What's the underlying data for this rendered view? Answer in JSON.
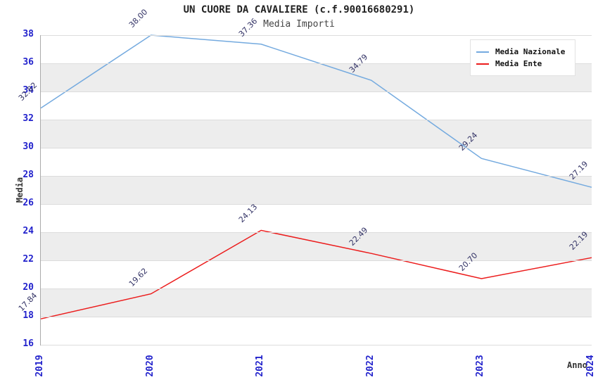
{
  "header": {
    "title": "UN CUORE DA CAVALIERE (c.f.90016680291)",
    "subtitle": "Media Importi"
  },
  "colors": {
    "national": "#74aadf",
    "ente": "#ec1c1c",
    "tick_blue": "#2222cc",
    "data_label": "#333366",
    "band_gray": "#ededed",
    "gridline": "#dcdcdc"
  },
  "legend": {
    "items": [
      {
        "label": "Media Nazionale"
      },
      {
        "label": "Media Ente"
      }
    ]
  },
  "chart_data": {
    "type": "line",
    "title": "UN CUORE DA CAVALIERE (c.f.90016680291)",
    "subtitle": "Media Importi",
    "xlabel": "Anno",
    "ylabel": "Media",
    "x": [
      "2019",
      "2020",
      "2021",
      "2022",
      "2023",
      "2024"
    ],
    "series": [
      {
        "name": "Media Nazionale",
        "color_key": "national",
        "values": [
          32.82,
          38.0,
          37.36,
          34.79,
          29.24,
          27.19
        ]
      },
      {
        "name": "Media Ente",
        "color_key": "ente",
        "values": [
          17.84,
          19.62,
          24.13,
          22.49,
          20.7,
          22.19
        ]
      }
    ],
    "ylim": [
      16,
      38
    ],
    "ytick_step": 2,
    "grid": true,
    "band_step": 2,
    "legend_position": "top-right",
    "value_label_format": "0.00"
  }
}
